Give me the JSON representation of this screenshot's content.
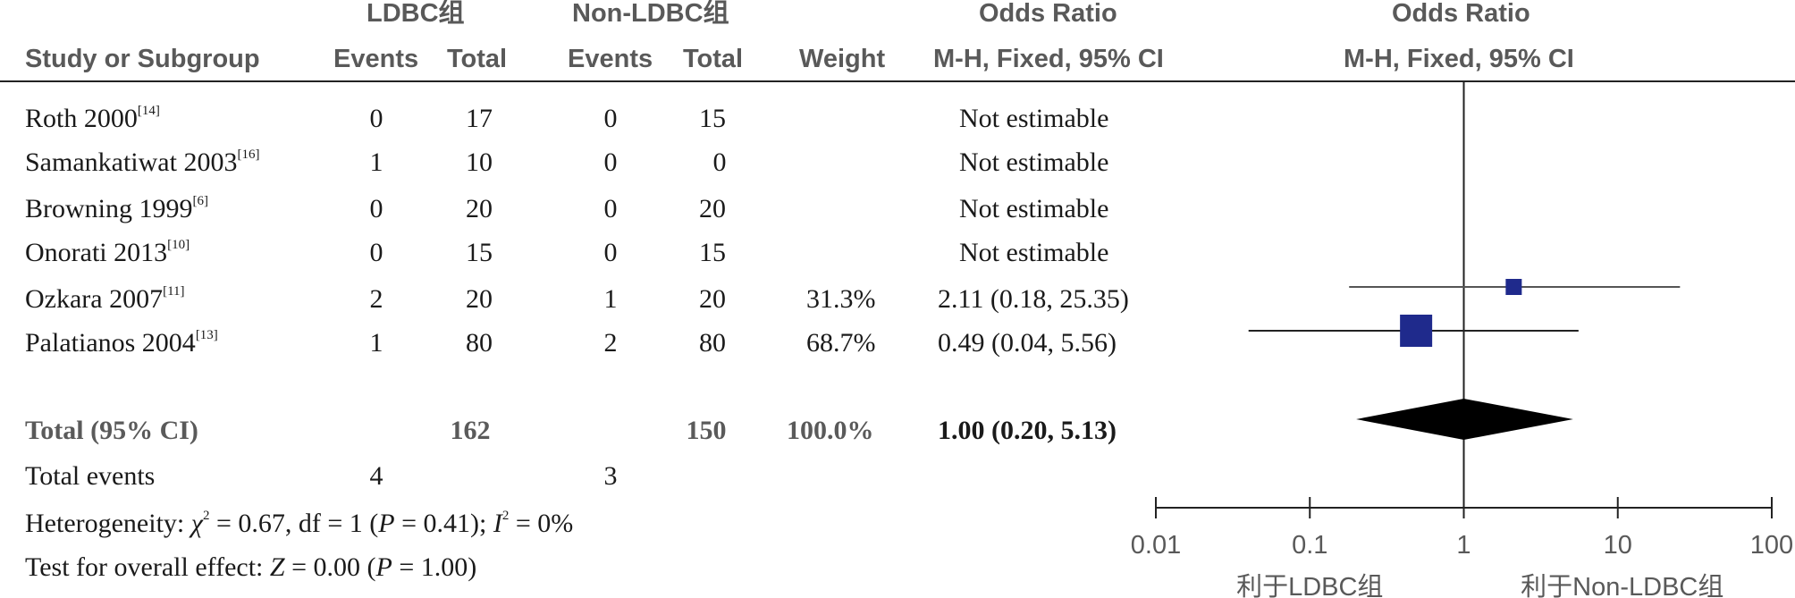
{
  "header": {
    "group1": "LDBC组",
    "group2": "Non-LDBC组",
    "or_title": "Odds Ratio",
    "plot_title": "Odds Ratio",
    "study": "Study or Subgroup",
    "events1": "Events",
    "total1": "Total",
    "events2": "Events",
    "total2": "Total",
    "weight": "Weight",
    "or_method": "M-H, Fixed, 95% CI",
    "plot_method": "M-H, Fixed, 95% CI"
  },
  "studies": [
    {
      "name": "Roth 2000",
      "ref": "[14]",
      "events1": "0",
      "total1": "17",
      "events2": "0",
      "total2": "15",
      "weight": "",
      "or_text": "Not estimable"
    },
    {
      "name": "Samankatiwat 2003",
      "ref": "[16]",
      "events1": "1",
      "total1": "10",
      "events2": "0",
      "total2": "0",
      "weight": "",
      "or_text": "Not estimable"
    },
    {
      "name": "Browning 1999",
      "ref": "[6]",
      "events1": "0",
      "total1": "20",
      "events2": "0",
      "total2": "20",
      "weight": "",
      "or_text": "Not estimable"
    },
    {
      "name": "Onorati 2013",
      "ref": "[10]",
      "events1": "0",
      "total1": "15",
      "events2": "0",
      "total2": "15",
      "weight": "",
      "or_text": "Not estimable"
    },
    {
      "name": "Ozkara 2007",
      "ref": "[11]",
      "events1": "2",
      "total1": "20",
      "events2": "1",
      "total2": "20",
      "weight": "31.3%",
      "or_text": "2.11 (0.18, 25.35)"
    },
    {
      "name": "Palatianos 2004",
      "ref": "[13]",
      "events1": "1",
      "total1": "80",
      "events2": "2",
      "total2": "80",
      "weight": "68.7%",
      "or_text": "0.49 (0.04, 5.56)"
    }
  ],
  "total": {
    "label": "Total (95% CI)",
    "total1": "162",
    "total2": "150",
    "weight": "100.0%",
    "or_text": "1.00 (0.20, 5.13)"
  },
  "total_events": {
    "label": "Total events",
    "events1": "4",
    "events2": "3"
  },
  "heterogeneity": {
    "prefix": "Heterogeneity: ",
    "chi_symbol": "χ",
    "chi_value": " = 0.67, df = 1 (",
    "p_symbol": "P",
    "p_value": " = 0.41); ",
    "i_symbol": "I",
    "i_value": " = 0%"
  },
  "overall_effect": {
    "prefix": "Test for overall effect: ",
    "z_symbol": "Z",
    "z_value": " = 0.00 (",
    "p_symbol": "P",
    "p_value": " = 1.00)"
  },
  "colors": {
    "marker": "#1f2a8c",
    "diamond": "#000000",
    "axis": "#222222",
    "ci_line_ozkara": "#555555"
  },
  "chart_data": {
    "type": "forest",
    "scale": "log",
    "xlim": [
      0.01,
      100
    ],
    "ticks": [
      0.01,
      0.1,
      1,
      10,
      100
    ],
    "tick_labels": [
      "0.01",
      "0.1",
      "1",
      "10",
      "100"
    ],
    "favours_left": "利于LDBC组",
    "favours_right": "利于Non-LDBC组",
    "estimates": [
      {
        "study": "Ozkara 2007",
        "or": 2.11,
        "lower": 0.18,
        "upper": 25.35,
        "weight": 31.3
      },
      {
        "study": "Palatianos 2004",
        "or": 0.49,
        "lower": 0.04,
        "upper": 5.56,
        "weight": 68.7
      }
    ],
    "pooled": {
      "or": 1.0,
      "lower": 0.2,
      "upper": 5.13
    }
  }
}
